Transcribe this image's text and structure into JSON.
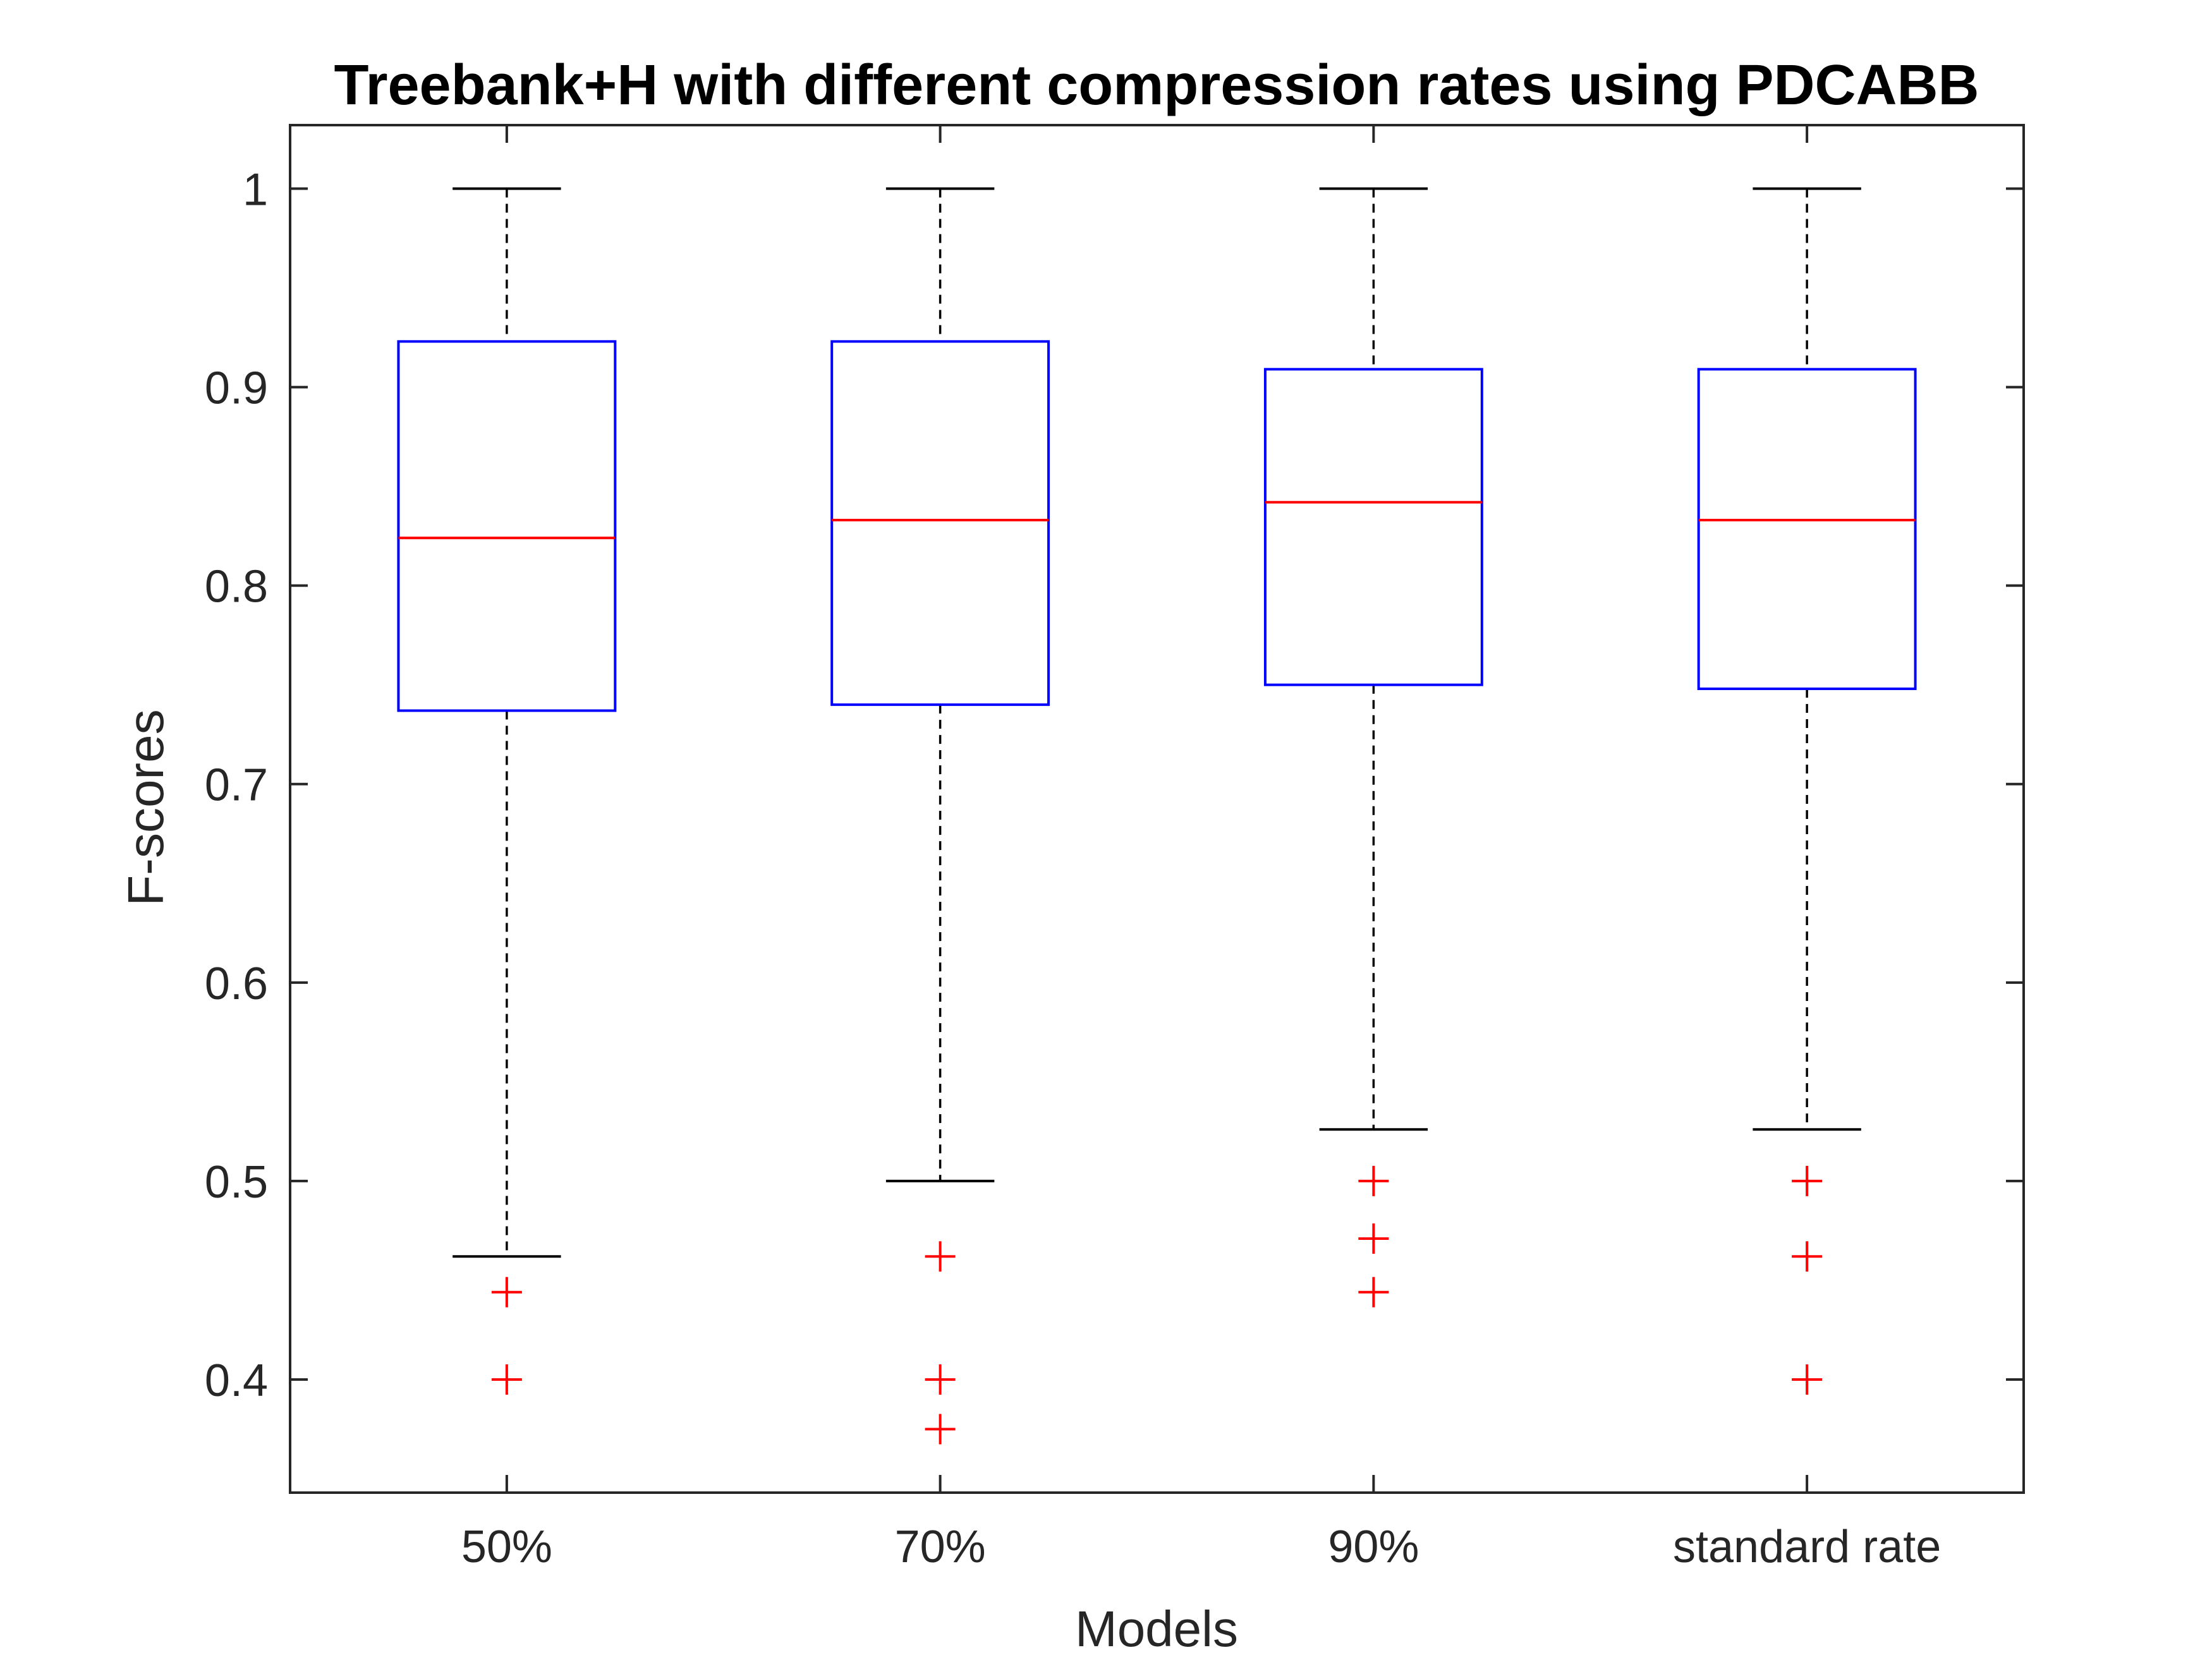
{
  "chart_data": {
    "type": "boxplot",
    "title": "Treebank+H with different compression rates using PDCABB",
    "xlabel": "Models",
    "ylabel": "F-scores",
    "ylim": [
      0.343,
      1.032
    ],
    "yticks": [
      0.4,
      0.5,
      0.6,
      0.7,
      0.8,
      0.9,
      1
    ],
    "ytick_labels": [
      "0.4",
      "0.5",
      "0.6",
      "0.7",
      "0.8",
      "0.9",
      "1"
    ],
    "grid": false,
    "categories": [
      "50%",
      "70%",
      "90%",
      "standard rate"
    ],
    "boxes": [
      {
        "category": "50%",
        "whisker_low": 0.462,
        "q1": 0.737,
        "median": 0.824,
        "q3": 0.923,
        "whisker_high": 1.0,
        "outliers": [
          0.444,
          0.4
        ]
      },
      {
        "category": "70%",
        "whisker_low": 0.5,
        "q1": 0.74,
        "median": 0.833,
        "q3": 0.923,
        "whisker_high": 1.0,
        "outliers": [
          0.462,
          0.4,
          0.375
        ]
      },
      {
        "category": "90%",
        "whisker_low": 0.526,
        "q1": 0.75,
        "median": 0.842,
        "q3": 0.909,
        "whisker_high": 1.0,
        "outliers": [
          0.5,
          0.471,
          0.444
        ]
      },
      {
        "category": "standard rate",
        "whisker_low": 0.526,
        "q1": 0.748,
        "median": 0.833,
        "q3": 0.909,
        "whisker_high": 1.0,
        "outliers": [
          0.5,
          0.462,
          0.4
        ]
      }
    ],
    "colors": {
      "box": "#0000ff",
      "median": "#ff0000",
      "outlier": "#ff0000",
      "whisker": "#000000",
      "axis": "#262626",
      "text": "#262626",
      "title": "#000000"
    }
  }
}
